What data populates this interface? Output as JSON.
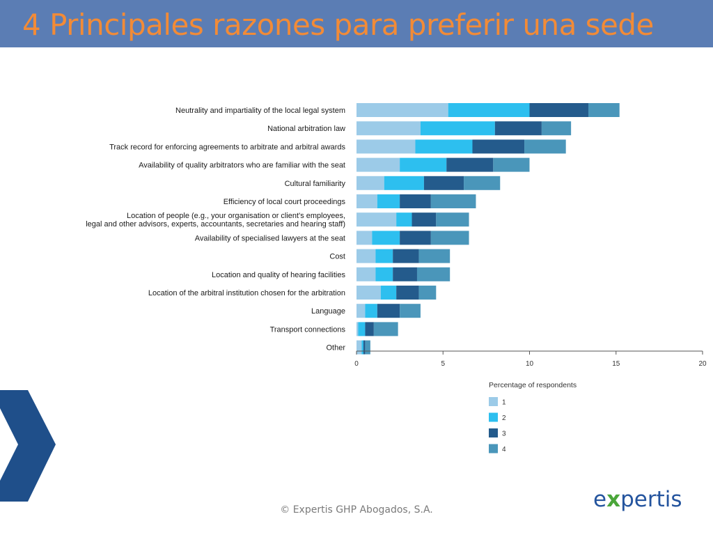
{
  "slide": {
    "title": "4 Principales razones para preferir una sede",
    "copyright": "© Expertis GHP Abogados, S.A.",
    "logo": {
      "prefix": "e",
      "x": "x",
      "suffix": "pertis",
      "color": "#24549e",
      "accent": "#4aa63a"
    }
  },
  "colors": {
    "title_bar": "#5b7db4",
    "title_text": "#f28b37",
    "chevron": "#1f4f8a"
  },
  "chart_data": {
    "type": "bar",
    "orientation": "horizontal",
    "stacked": true,
    "categories": [
      [
        "Neutrality and impartiality of the local legal system"
      ],
      [
        "National arbitration law"
      ],
      [
        "Track record for enforcing agreements to arbitrate and arbitral awards"
      ],
      [
        "Availability of quality arbitrators who are familiar with the seat"
      ],
      [
        "Cultural familiarity"
      ],
      [
        "Efficiency of local court proceedings"
      ],
      [
        "Location of people (e.g., your organisation or client's employees,",
        "legal and other advisors, experts, accountants, secretaries and hearing staff)"
      ],
      [
        "Availability of specialised lawyers at the seat"
      ],
      [
        "Cost"
      ],
      [
        "Location and quality of hearing facilities"
      ],
      [
        "Location of the arbitral institution chosen for the arbitration"
      ],
      [
        "Language"
      ],
      [
        "Transport connections"
      ],
      [
        "Other"
      ]
    ],
    "series": [
      {
        "name": "1",
        "color": "#9ccbe8",
        "values": [
          5.3,
          3.7,
          3.4,
          2.5,
          1.6,
          1.2,
          2.3,
          0.9,
          1.1,
          1.1,
          1.4,
          0.5,
          0.1,
          0.3
        ]
      },
      {
        "name": "2",
        "color": "#2dbfef",
        "values": [
          4.7,
          4.3,
          3.3,
          2.7,
          2.3,
          1.3,
          0.9,
          1.6,
          1.0,
          1.0,
          0.9,
          0.7,
          0.4,
          0.1
        ]
      },
      {
        "name": "3",
        "color": "#245b8c",
        "values": [
          3.4,
          2.7,
          3.0,
          2.7,
          2.3,
          1.8,
          1.4,
          1.8,
          1.5,
          1.4,
          1.3,
          1.3,
          0.5,
          0.1
        ]
      },
      {
        "name": "4",
        "color": "#4a96ba",
        "values": [
          1.8,
          1.7,
          2.4,
          2.1,
          2.1,
          2.6,
          1.9,
          2.2,
          1.8,
          1.9,
          1.0,
          1.2,
          1.4,
          0.3
        ]
      }
    ],
    "xlim": [
      0,
      20
    ],
    "xticks": [
      0,
      5,
      10,
      15,
      20
    ],
    "legend_title": "Percentage of respondents",
    "legend_position": "bottom-right",
    "grid": false
  }
}
